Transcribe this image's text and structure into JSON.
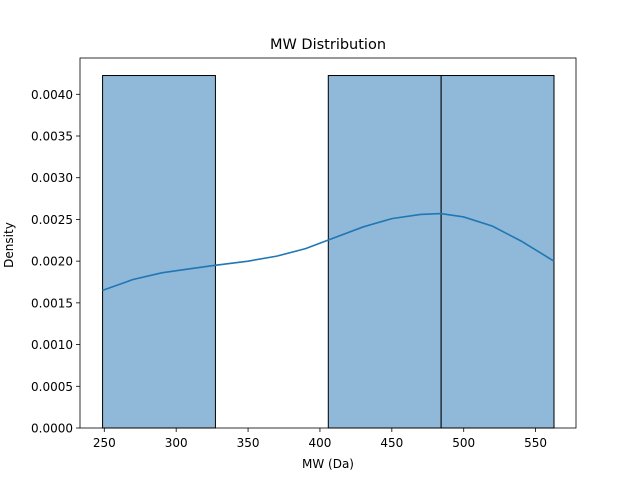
{
  "chart_data": {
    "type": "bar",
    "title": "MW Distribution",
    "xlabel": "MW (Da)",
    "ylabel": "Density",
    "xlim": [
      233.1,
      578.1
    ],
    "ylim": [
      0,
      0.004435
    ],
    "xticks": [
      250,
      300,
      350,
      400,
      450,
      500,
      550
    ],
    "yticks": [
      0.0,
      0.0005,
      0.001,
      0.0015,
      0.002,
      0.0025,
      0.003,
      0.0035,
      0.004
    ],
    "ytick_labels": [
      "0.0000",
      "0.0005",
      "0.0010",
      "0.0015",
      "0.0020",
      "0.0025",
      "0.0030",
      "0.0035",
      "0.0040"
    ],
    "bins": [
      {
        "x0": 248.8,
        "x1": 327.3,
        "density": 0.004225
      },
      {
        "x0": 327.3,
        "x1": 405.8,
        "density": 0.0
      },
      {
        "x0": 405.8,
        "x1": 484.3,
        "density": 0.004225
      },
      {
        "x0": 484.3,
        "x1": 562.8,
        "density": 0.004225
      }
    ],
    "kde": {
      "x": [
        248.8,
        270,
        290,
        310,
        327,
        350,
        370,
        390,
        410,
        430,
        450,
        470,
        484,
        500,
        520,
        540,
        562.8
      ],
      "y": [
        0.00165,
        0.00178,
        0.00186,
        0.00191,
        0.00195,
        0.002,
        0.00206,
        0.00215,
        0.00228,
        0.00241,
        0.00251,
        0.00256,
        0.00257,
        0.00253,
        0.00242,
        0.00224,
        0.002
      ]
    },
    "grid": false,
    "colors": {
      "bar_fill": "#8fb8d9",
      "bar_edge": "#000000",
      "kde_line": "#1f77b4"
    }
  }
}
